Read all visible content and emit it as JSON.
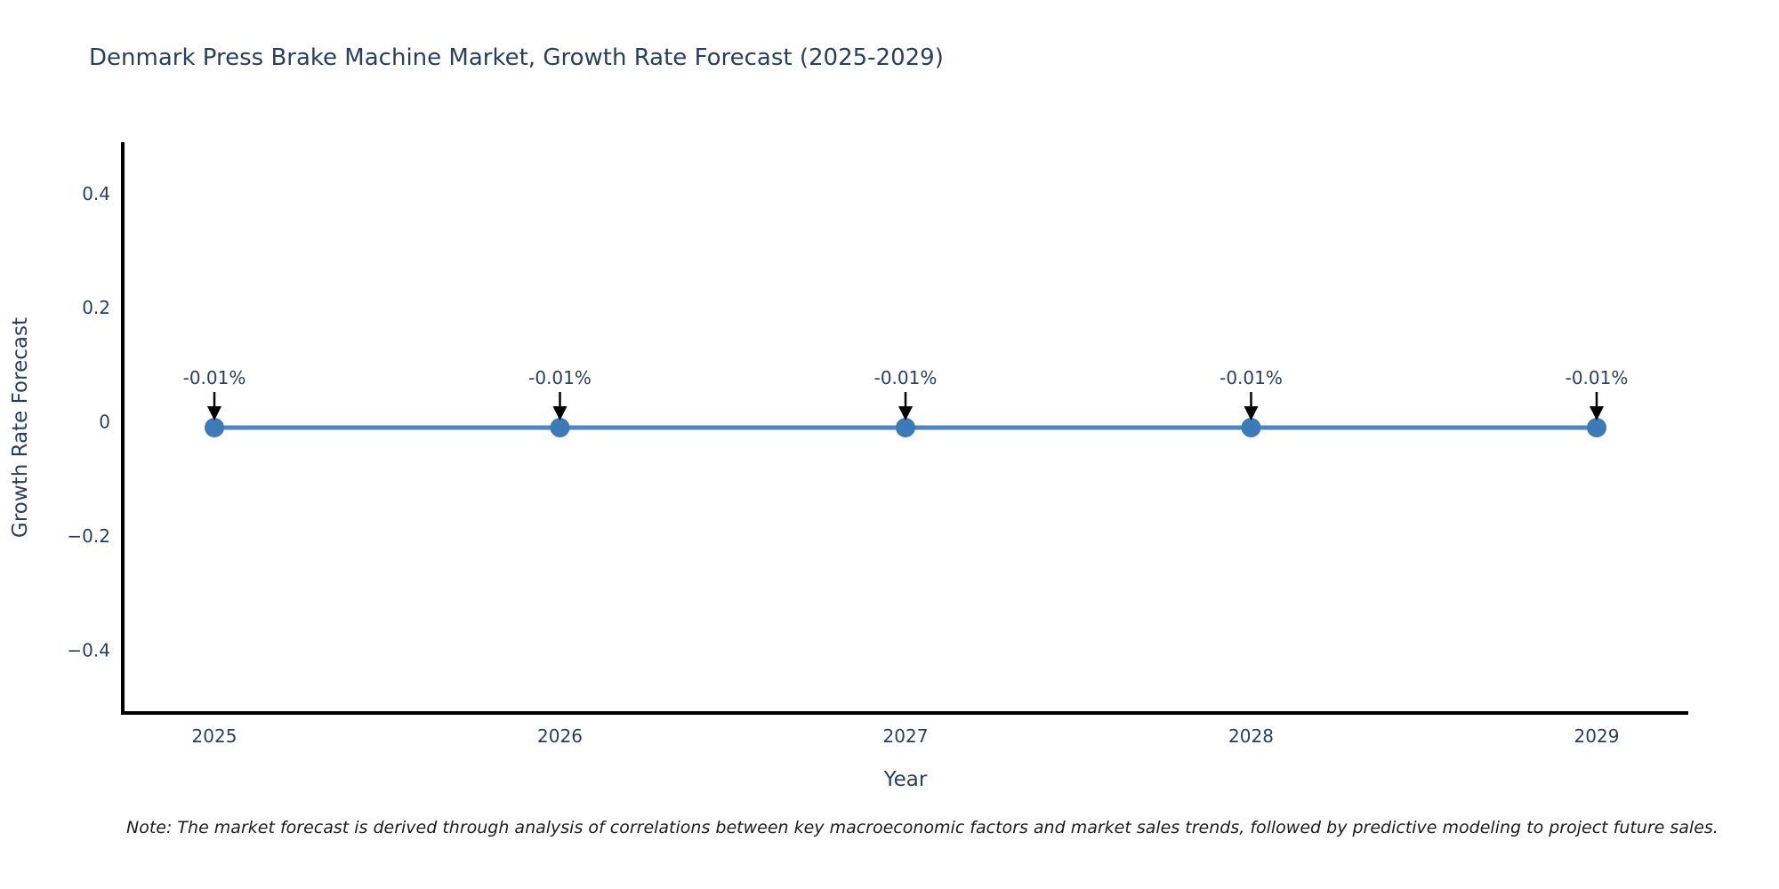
{
  "title": "Denmark Press Brake Machine Market, Growth Rate Forecast (2025-2029)",
  "note": "Note: The market forecast is derived through analysis of correlations between key macroeconomic factors and market sales trends, followed by predictive modeling to project future sales.",
  "chart_data": {
    "type": "line",
    "title": "Denmark Press Brake Machine Market, Growth Rate Forecast (2025-2029)",
    "x": [
      2025,
      2026,
      2027,
      2028,
      2029
    ],
    "values": [
      -0.01,
      -0.01,
      -0.01,
      -0.01,
      -0.01
    ],
    "point_labels": [
      "-0.01%",
      "-0.01%",
      "-0.01%",
      "-0.01%",
      "-0.01%"
    ],
    "xtick_labels": [
      "2025",
      "2026",
      "2027",
      "2028",
      "2029"
    ],
    "yticks": [
      0.4,
      0.2,
      0,
      -0.2,
      -0.4
    ],
    "ytick_labels": [
      "0.4",
      "0.2",
      "0",
      "−0.2",
      "−0.4"
    ],
    "xlabel": "Year",
    "ylabel": "Growth Rate Forecast",
    "ylim": [
      -0.51,
      0.49
    ],
    "grid": false,
    "legend": "none",
    "colors": {
      "line": "#4a86c2",
      "marker": "#3d7ab8",
      "axis": "#000000",
      "text": "#2a3f5f",
      "arrow": "#000000"
    }
  }
}
